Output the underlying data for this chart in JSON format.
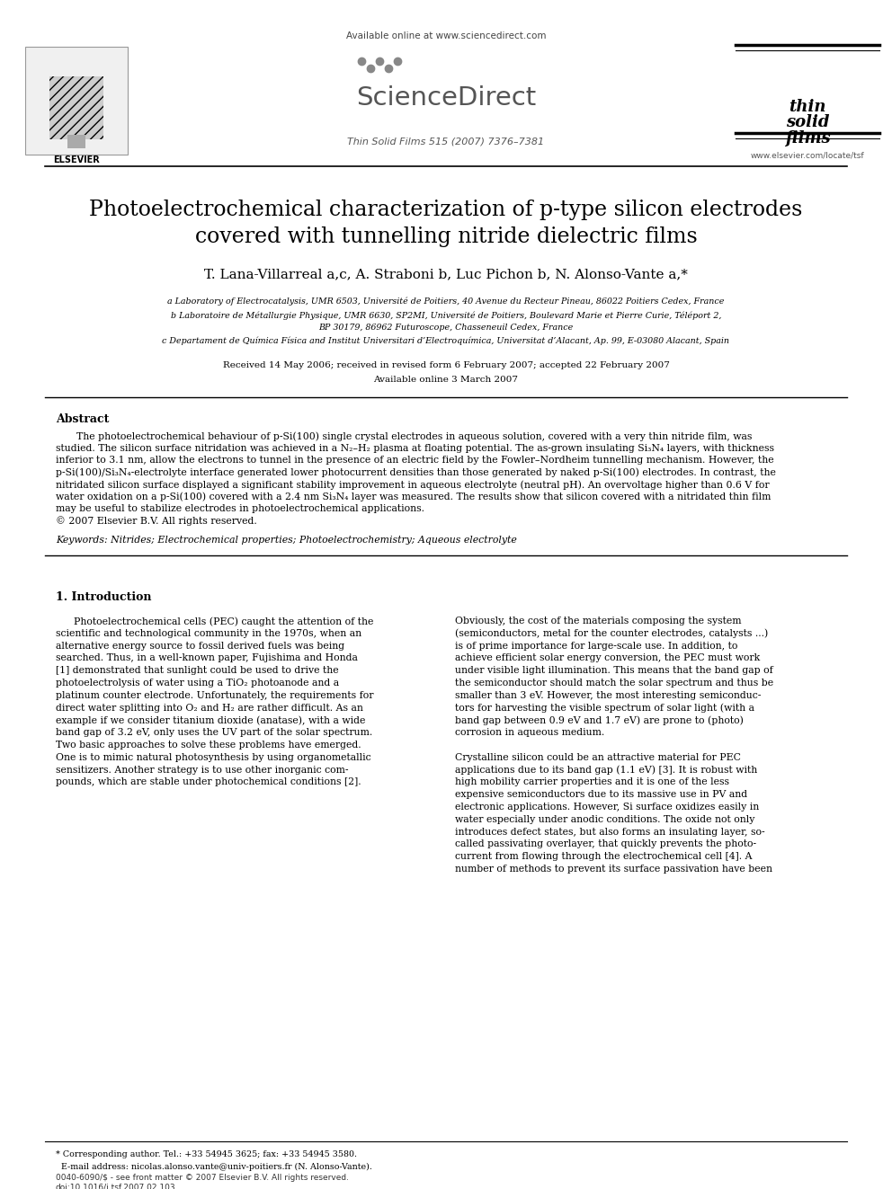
{
  "bg_color": "#ffffff",
  "header": {
    "available_online": "Available online at www.sciencedirect.com",
    "journal": "Thin Solid Films 515 (2007) 7376–7381",
    "sciencedirect_text": "ScienceDirect",
    "journal_url": "www.elsevier.com/locate/tsf"
  },
  "title_line1": "Photoelectrochemical characterization of p-type silicon electrodes",
  "title_line2": "covered with tunnelling nitride dielectric films",
  "authors": "T. Lana-Villarreal a,c, A. Straboni b, Luc Pichon b, N. Alonso-Vante a,*",
  "affil_a": "a Laboratory of Electrocatalysis, UMR 6503, Université de Poitiers, 40 Avenue du Recteur Pineau, 86022 Poitiers Cedex, France",
  "affil_b1": "b Laboratoire de Métallurgie Physique, UMR 6630, SP2MI, Université de Poitiers, Boulevard Marie et Pierre Curie, Téléport 2,",
  "affil_b2": "BP 30179, 86962 Futuroscope, Chasseneuil Cedex, France",
  "affil_c": "c Departament de Química Física and Institut Universitari d’Electroquímica, Universitat d’Alacant, Ap. 99, E-03080 Alacant, Spain",
  "date1": "Received 14 May 2006; received in revised form 6 February 2007; accepted 22 February 2007",
  "date2": "Available online 3 March 2007",
  "abstract_title": "Abstract",
  "abstract_lines": [
    "The photoelectrochemical behaviour of p-Si(100) single crystal electrodes in aqueous solution, covered with a very thin nitride film, was",
    "studied. The silicon surface nitridation was achieved in a N₂–H₂ plasma at floating potential. The as-grown insulating Si₃N₄ layers, with thickness",
    "inferior to 3.1 nm, allow the electrons to tunnel in the presence of an electric field by the Fowler–Nordheim tunnelling mechanism. However, the",
    "p-Si(100)/Si₃N₄-electrolyte interface generated lower photocurrent densities than those generated by naked p-Si(100) electrodes. In contrast, the",
    "nitridated silicon surface displayed a significant stability improvement in aqueous electrolyte (neutral pH). An overvoltage higher than 0.6 V for",
    "water oxidation on a p-Si(100) covered with a 2.4 nm Si₃N₄ layer was measured. The results show that silicon covered with a nitridated thin film",
    "may be useful to stabilize electrodes in photoelectrochemical applications.",
    "© 2007 Elsevier B.V. All rights reserved."
  ],
  "keywords": "Keywords: Nitrides; Electrochemical properties; Photoelectrochemistry; Aqueous electrolyte",
  "section1_title": "1. Introduction",
  "intro_left_lines": [
    "Photoelectrochemical cells (PEC) caught the attention of the",
    "scientific and technological community in the 1970s, when an",
    "alternative energy source to fossil derived fuels was being",
    "searched. Thus, in a well-known paper, Fujishima and Honda",
    "[1] demonstrated that sunlight could be used to drive the",
    "photoelectrolysis of water using a TiO₂ photoanode and a",
    "platinum counter electrode. Unfortunately, the requirements for",
    "direct water splitting into O₂ and H₂ are rather difficult. As an",
    "example if we consider titanium dioxide (anatase), with a wide",
    "band gap of 3.2 eV, only uses the UV part of the solar spectrum.",
    "Two basic approaches to solve these problems have emerged.",
    "One is to mimic natural photosynthesis by using organometallic",
    "sensitizers. Another strategy is to use other inorganic com-",
    "pounds, which are stable under photochemical conditions [2]."
  ],
  "intro_right_lines": [
    "Obviously, the cost of the materials composing the system",
    "(semiconductors, metal for the counter electrodes, catalysts ...)",
    "is of prime importance for large-scale use. In addition, to",
    "achieve efficient solar energy conversion, the PEC must work",
    "under visible light illumination. This means that the band gap of",
    "the semiconductor should match the solar spectrum and thus be",
    "smaller than 3 eV. However, the most interesting semiconduc-",
    "tors for harvesting the visible spectrum of solar light (with a",
    "band gap between 0.9 eV and 1.7 eV) are prone to (photo)",
    "corrosion in aqueous medium.",
    "",
    "Crystalline silicon could be an attractive material for PEC",
    "applications due to its band gap (1.1 eV) [3]. It is robust with",
    "high mobility carrier properties and it is one of the less",
    "expensive semiconductors due to its massive use in PV and",
    "electronic applications. However, Si surface oxidizes easily in",
    "water especially under anodic conditions. The oxide not only",
    "introduces defect states, but also forms an insulating layer, so-",
    "called passivating overlayer, that quickly prevents the photo-",
    "current from flowing through the electrochemical cell [4]. A",
    "number of methods to prevent its surface passivation have been"
  ],
  "corr_author1": "* Corresponding author. Tel.: +33 54945 3625; fax: +33 54945 3580.",
  "corr_author2": "  E-mail address: nicolas.alonso.vante@univ-poitiers.fr (N. Alonso-Vante).",
  "footer1": "0040-6090/$ - see front matter © 2007 Elsevier B.V. All rights reserved.",
  "footer2": "doi:10.1016/j.tsf.2007.02.103"
}
